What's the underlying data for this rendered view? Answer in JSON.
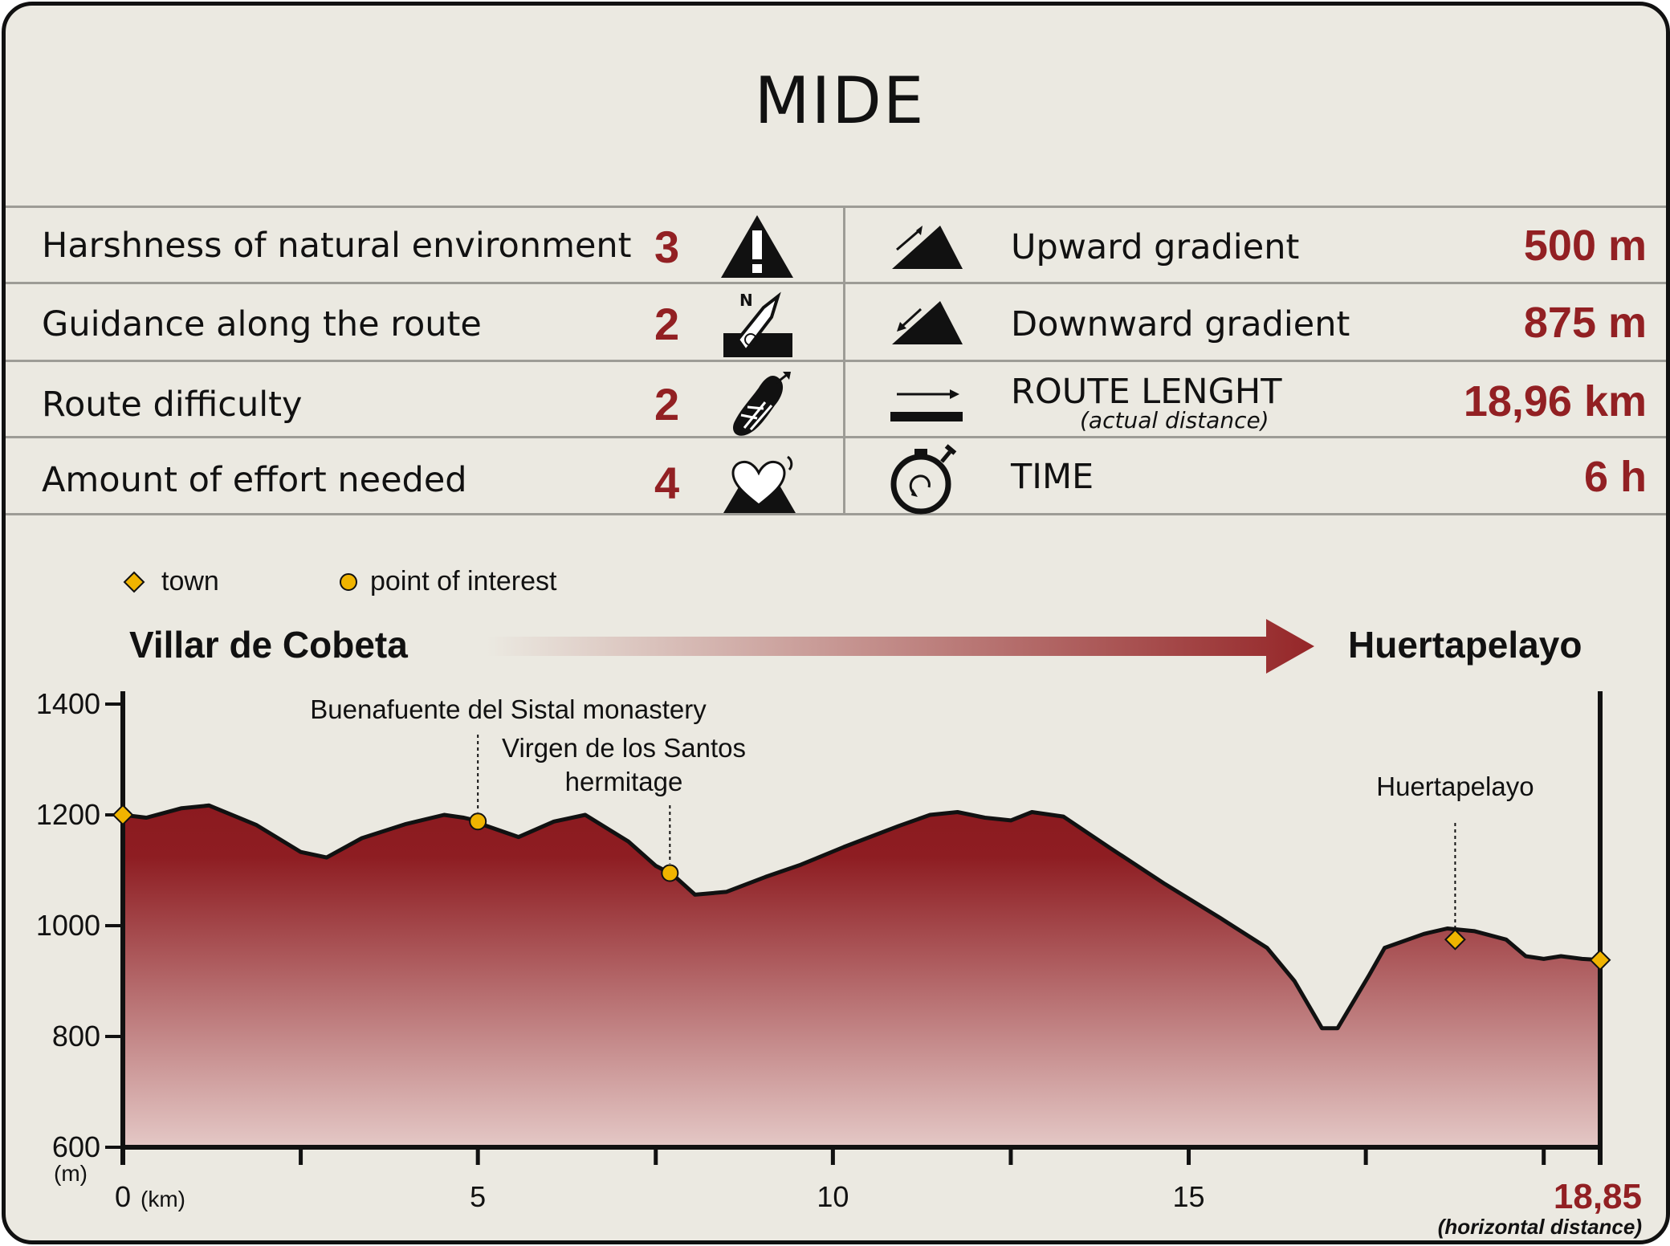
{
  "title": "MIDE",
  "left_rows": [
    {
      "label": "Harshness of natural environment",
      "value": "3",
      "icon": "warning-icon"
    },
    {
      "label": "Guidance along the route",
      "value": "2",
      "icon": "compass-map-icon"
    },
    {
      "label": "Route difficulty",
      "value": "2",
      "icon": "footprint-icon"
    },
    {
      "label": "Amount of effort needed",
      "value": "4",
      "icon": "heart-mountain-icon"
    }
  ],
  "right_rows": [
    {
      "label": "Upward gradient",
      "value": "500 m",
      "icon": "upward-gradient-icon"
    },
    {
      "label": "Downward gradient",
      "value": "875 m",
      "icon": "downward-gradient-icon"
    },
    {
      "label": "ROUTE LENGHT",
      "sublabel": "(actual distance)",
      "value": "18,96 km",
      "icon": "route-length-icon"
    },
    {
      "label": "TIME",
      "value": "6 h",
      "icon": "stopwatch-icon"
    }
  ],
  "colors": {
    "accent": "#922023",
    "background": "#ebe9e1",
    "marker": "#f0b400"
  },
  "chart_data": {
    "type": "area",
    "legend": {
      "town": "town",
      "poi": "point of interest"
    },
    "start_label": "Villar de Cobeta",
    "end_label": "Huertapelayo",
    "ylabel": "(m)",
    "xlabel": "(km)",
    "x_end_label": "18,85",
    "x_end_note": "(horizontal distance)",
    "ylim": [
      600,
      1400
    ],
    "xlim": [
      0,
      18.85
    ],
    "yticks": [
      {
        "v": 600,
        "label": "600"
      },
      {
        "v": 800,
        "label": "800"
      },
      {
        "v": 1000,
        "label": "1000"
      },
      {
        "v": 1200,
        "label": "1200"
      },
      {
        "v": 1400,
        "label": "1400"
      }
    ],
    "xticks": [
      {
        "v": 0,
        "label": "0"
      },
      {
        "v": 2.27,
        "label": ""
      },
      {
        "v": 4.53,
        "label": "5"
      },
      {
        "v": 6.8,
        "label": ""
      },
      {
        "v": 9.06,
        "label": "10"
      },
      {
        "v": 11.33,
        "label": ""
      },
      {
        "v": 13.6,
        "label": "15"
      },
      {
        "v": 15.86,
        "label": ""
      },
      {
        "v": 18.13,
        "label": ""
      }
    ],
    "x": [
      0,
      0.3,
      0.75,
      1.1,
      1.7,
      2.27,
      2.6,
      3.05,
      3.6,
      4.1,
      4.35,
      4.5,
      4.53,
      4.6,
      5.05,
      5.5,
      5.9,
      6.45,
      6.8,
      6.98,
      7.05,
      7.3,
      7.7,
      8.2,
      8.65,
      9.2,
      9.9,
      10.3,
      10.65,
      11.0,
      11.33,
      11.6,
      12.0,
      12.6,
      13.3,
      14.0,
      14.6,
      14.95,
      15.3,
      15.5,
      15.9,
      16.1,
      16.6,
      16.9,
      17.25,
      17.65,
      17.9,
      18.13,
      18.35,
      18.62,
      18.85
    ],
    "y": [
      1200,
      1195,
      1212,
      1217,
      1182,
      1133,
      1123,
      1158,
      1183,
      1200,
      1195,
      1190,
      1188,
      1182,
      1160,
      1188,
      1200,
      1152,
      1108,
      1095,
      1088,
      1056,
      1061,
      1088,
      1110,
      1142,
      1180,
      1200,
      1205,
      1195,
      1190,
      1205,
      1197,
      1140,
      1075,
      1014,
      960,
      900,
      815,
      815,
      910,
      960,
      985,
      995,
      990,
      975,
      945,
      940,
      945,
      940,
      938
    ],
    "towns": [
      {
        "x": 0,
        "y": 1200,
        "label": ""
      },
      {
        "x": 17.0,
        "y": 975,
        "label": "Huertapelayo"
      },
      {
        "x": 18.85,
        "y": 938,
        "label": ""
      }
    ],
    "pois": [
      {
        "x": 4.53,
        "y": 1188,
        "label": "Buenafuente del Sistal monastery"
      },
      {
        "x": 6.98,
        "y": 1095,
        "label": "Virgen de los Santos hermitage"
      }
    ]
  }
}
